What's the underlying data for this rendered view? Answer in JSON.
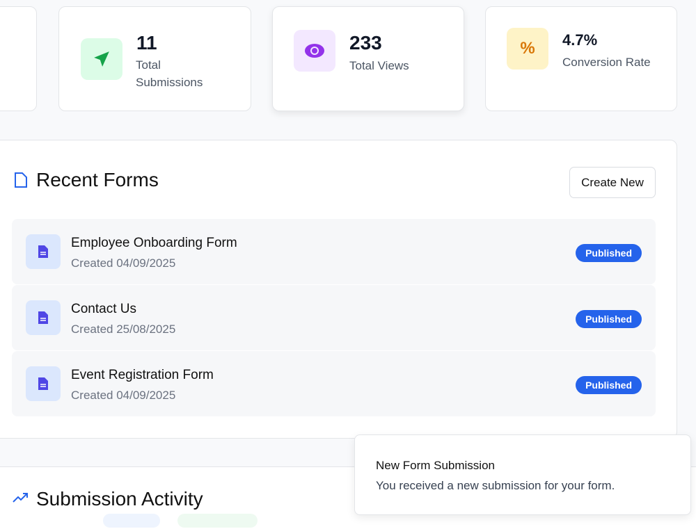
{
  "stats": [
    {
      "value": "11",
      "label": "Total Submissions",
      "icon": "send-icon",
      "icon_bg": "#dcfce7",
      "icon_color": "#16a34a"
    },
    {
      "value": "233",
      "label": "Total Views",
      "icon": "eye-icon",
      "icon_bg": "#f3e8ff",
      "icon_color": "#9333ea"
    },
    {
      "value": "4.7%",
      "label": "Conversion Rate",
      "icon": "percent-icon",
      "icon_bg": "#fef3c7",
      "icon_color": "#d97706"
    }
  ],
  "recent": {
    "title": "Recent Forms",
    "create_label": "Create New",
    "forms": [
      {
        "name": "Employee Onboarding Form",
        "created": "Created 04/09/2025",
        "status": "Published"
      },
      {
        "name": "Contact Us",
        "created": "Created 25/08/2025",
        "status": "Published"
      },
      {
        "name": "Event Registration Form",
        "created": "Created 04/09/2025",
        "status": "Published"
      }
    ]
  },
  "activity": {
    "title": "Submission Activity"
  },
  "toast": {
    "title": "New Form Submission",
    "message": "You received a new submission for your form."
  }
}
